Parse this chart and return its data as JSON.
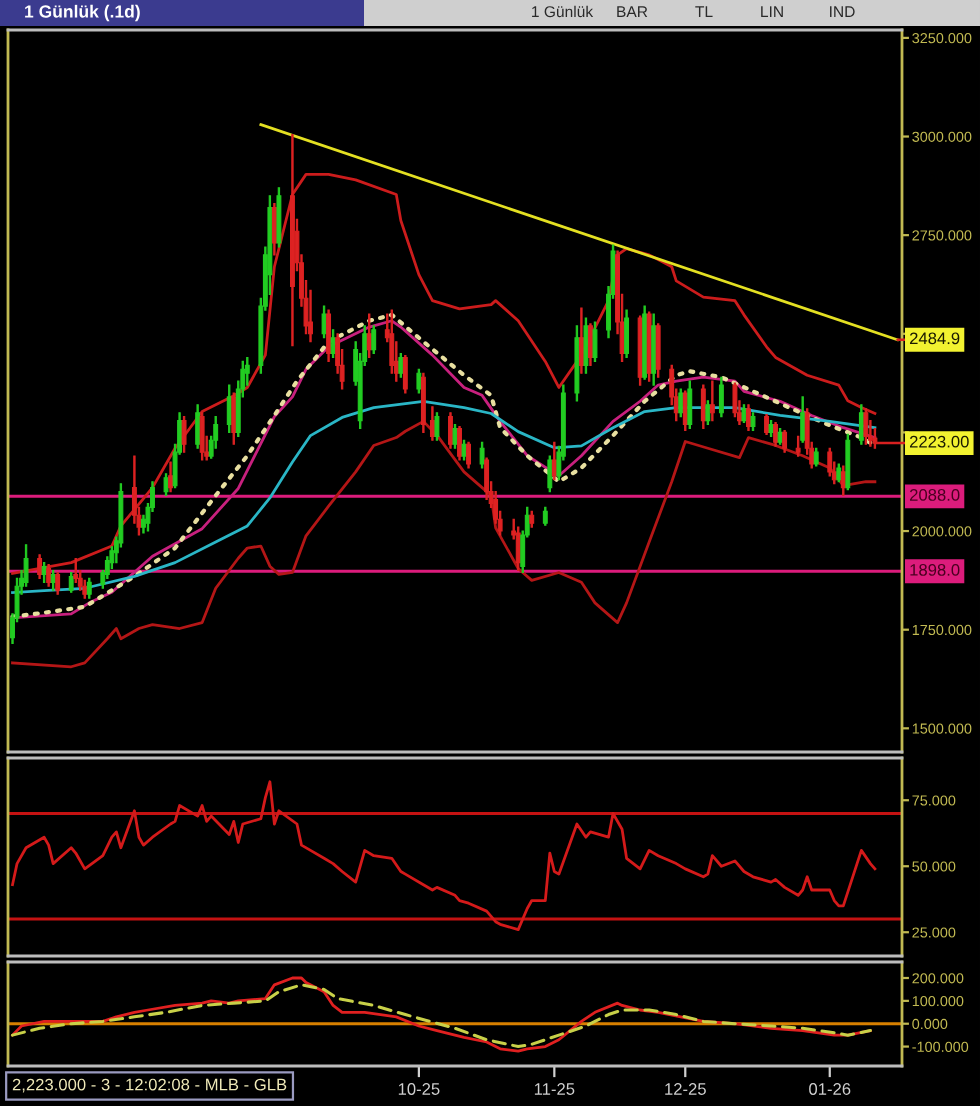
{
  "chart_data": [
    {
      "type": "candlestick",
      "title": "1 Günlük (.1d)",
      "annotations": [
        "1 Günlük",
        "BAR",
        "TL",
        "LIN",
        "IND",
        {
          "text": "2484.9",
          "x": "2026-02-10",
          "y": 2484.9
        },
        {
          "text": "2223.00",
          "x": "2026-02-05",
          "y": 2223
        }
      ],
      "x": [
        "2025-07-29",
        "2025-07-30",
        "2025-07-31",
        "2025-08-01",
        "2025-08-04",
        "2025-08-05",
        "2025-08-06",
        "2025-08-07",
        "2025-08-08",
        "2025-08-11",
        "2025-08-12",
        "2025-08-13",
        "2025-08-14",
        "2025-08-15",
        "2025-08-18",
        "2025-08-19",
        "2025-08-20",
        "2025-08-21",
        "2025-08-22",
        "2025-08-25",
        "2025-08-26",
        "2025-08-27",
        "2025-08-28",
        "2025-08-29",
        "2025-09-01",
        "2025-09-02",
        "2025-09-03",
        "2025-09-04",
        "2025-09-05",
        "2025-09-08",
        "2025-09-09",
        "2025-09-10",
        "2025-09-11",
        "2025-09-12",
        "2025-09-15",
        "2025-09-16",
        "2025-09-17",
        "2025-09-18",
        "2025-09-19",
        "2025-09-22",
        "2025-09-23",
        "2025-09-24",
        "2025-09-25",
        "2025-09-26",
        "2025-09-29",
        "2025-09-30",
        "2025-10-01",
        "2025-10-02",
        "2025-10-03",
        "2025-10-06",
        "2025-10-07",
        "2025-10-08",
        "2025-10-09",
        "2025-10-10",
        "2025-10-13",
        "2025-10-14",
        "2025-10-15",
        "2025-10-16",
        "2025-10-17",
        "2025-10-20",
        "2025-10-21",
        "2025-10-22",
        "2025-10-23",
        "2025-10-24",
        "2025-10-27",
        "2025-10-28",
        "2025-10-30",
        "2025-10-31",
        "2025-11-03",
        "2025-11-04",
        "2025-11-05",
        "2025-11-06",
        "2025-11-07",
        "2025-11-10",
        "2025-11-11",
        "2025-11-12",
        "2025-11-13",
        "2025-11-14",
        "2025-11-17",
        "2025-11-18",
        "2025-11-19",
        "2025-11-20",
        "2025-11-21",
        "2025-11-24",
        "2025-11-25",
        "2025-11-26",
        "2025-11-27",
        "2025-11-28",
        "2025-12-01",
        "2025-12-02",
        "2025-12-03",
        "2025-12-04",
        "2025-12-05",
        "2025-12-08",
        "2025-12-09",
        "2025-12-10",
        "2025-12-11",
        "2025-12-12",
        "2025-12-15",
        "2025-12-16",
        "2025-12-17",
        "2025-12-18",
        "2025-12-19",
        "2025-12-22",
        "2025-12-23",
        "2025-12-24",
        "2025-12-25",
        "2025-12-26",
        "2025-12-29",
        "2025-12-30",
        "2025-12-31",
        "2026-01-02",
        "2026-01-05",
        "2026-01-06",
        "2026-01-07",
        "2026-01-08",
        "2026-01-09",
        "2026-01-12",
        "2026-01-13",
        "2026-01-14",
        "2026-01-15",
        "2026-01-16",
        "2026-01-19",
        "2026-01-20",
        "2026-01-21",
        "2026-01-22",
        "2026-01-23",
        "2026-01-26",
        "2026-01-27",
        "2026-01-28",
        "2026-01-29",
        "2026-01-30",
        "2026-02-02",
        "2026-02-03",
        "2026-02-04",
        "2026-02-05"
      ],
      "ohlc": [
        [
          1730,
          1790,
          1715,
          1780
        ],
        [
          1780,
          1880,
          1770,
          1860
        ],
        [
          1860,
          1900,
          1840,
          1880
        ],
        [
          1870,
          1965,
          1860,
          1930
        ],
        [
          1930,
          1940,
          1880,
          1890
        ],
        [
          1890,
          1920,
          1870,
          1910
        ],
        [
          1905,
          1915,
          1860,
          1870
        ],
        [
          1870,
          1900,
          1850,
          1890
        ],
        [
          1890,
          1895,
          1840,
          1850
        ],
        [
          1850,
          1895,
          1845,
          1885
        ],
        [
          1890,
          1930,
          1870,
          1880
        ],
        [
          1880,
          1900,
          1850,
          1860
        ],
        [
          1860,
          1875,
          1830,
          1840
        ],
        [
          1840,
          1880,
          1830,
          1870
        ],
        [
          1865,
          1900,
          1855,
          1895
        ],
        [
          1890,
          1935,
          1880,
          1925
        ],
        [
          1920,
          1960,
          1905,
          1950
        ],
        [
          1945,
          1985,
          1920,
          1975
        ],
        [
          1970,
          2120,
          1960,
          2100
        ],
        [
          2110,
          2190,
          2020,
          2040
        ],
        [
          2040,
          2060,
          1990,
          2010
        ],
        [
          2010,
          2040,
          1995,
          2030
        ],
        [
          2020,
          2070,
          2000,
          2060
        ],
        [
          2060,
          2125,
          2050,
          2110
        ],
        [
          2100,
          2145,
          2090,
          2135
        ],
        [
          2140,
          2175,
          2100,
          2110
        ],
        [
          2115,
          2220,
          2110,
          2200
        ],
        [
          2200,
          2300,
          2195,
          2280
        ],
        [
          2280,
          2290,
          2200,
          2220
        ],
        [
          2220,
          2320,
          2210,
          2300
        ],
        [
          2290,
          2300,
          2180,
          2200
        ],
        [
          2200,
          2240,
          2180,
          2190
        ],
        [
          2190,
          2240,
          2185,
          2230
        ],
        [
          2230,
          2290,
          2210,
          2270
        ],
        [
          2270,
          2370,
          2250,
          2340
        ],
        [
          2340,
          2350,
          2220,
          2250
        ],
        [
          2250,
          2380,
          2240,
          2360
        ],
        [
          2360,
          2430,
          2340,
          2410
        ],
        [
          2400,
          2440,
          2370,
          2420
        ],
        [
          2420,
          2590,
          2400,
          2570
        ],
        [
          2570,
          2720,
          2560,
          2700
        ],
        [
          2650,
          2850,
          2600,
          2820
        ],
        [
          2820,
          2830,
          2700,
          2730
        ],
        [
          2730,
          2870,
          2720,
          2850
        ],
        [
          2850,
          3005,
          2470,
          2620
        ],
        [
          2760,
          2790,
          2660,
          2680
        ],
        [
          2680,
          2700,
          2570,
          2590
        ],
        [
          2590,
          2635,
          2500,
          2520
        ],
        [
          2530,
          2610,
          2480,
          2500
        ],
        [
          2500,
          2570,
          2490,
          2550
        ],
        [
          2550,
          2560,
          2430,
          2450
        ],
        [
          2450,
          2510,
          2440,
          2490
        ],
        [
          2490,
          2500,
          2400,
          2420
        ],
        [
          2420,
          2460,
          2360,
          2380
        ],
        [
          2380,
          2480,
          2370,
          2460
        ],
        [
          2280,
          2450,
          2260,
          2430
        ],
        [
          2430,
          2520,
          2420,
          2500
        ],
        [
          2500,
          2550,
          2440,
          2460
        ],
        [
          2460,
          2520,
          2450,
          2510
        ],
        [
          2510,
          2550,
          2480,
          2490
        ],
        [
          2500,
          2560,
          2400,
          2420
        ],
        [
          2430,
          2480,
          2380,
          2400
        ],
        [
          2400,
          2450,
          2390,
          2440
        ],
        [
          2440,
          2445,
          2350,
          2360
        ],
        [
          2360,
          2410,
          2350,
          2400
        ],
        [
          2390,
          2400,
          2250,
          2270
        ],
        [
          2280,
          2315,
          2230,
          2240
        ],
        [
          2240,
          2300,
          2230,
          2290
        ],
        [
          2290,
          2300,
          2210,
          2220
        ],
        [
          2220,
          2270,
          2210,
          2260
        ],
        [
          2260,
          2265,
          2180,
          2190
        ],
        [
          2190,
          2230,
          2180,
          2220
        ],
        [
          2220,
          2225,
          2160,
          2170
        ],
        [
          2170,
          2225,
          2160,
          2210
        ],
        [
          2180,
          2185,
          2080,
          2100
        ],
        [
          2100,
          2125,
          2060,
          2070
        ],
        [
          2080,
          2100,
          2020,
          2030
        ],
        [
          2030,
          2050,
          1990,
          2000
        ],
        [
          2000,
          2030,
          1980,
          1990
        ],
        [
          1995,
          2010,
          1900,
          1920
        ],
        [
          1910,
          2000,
          1895,
          1990
        ],
        [
          1990,
          2060,
          1985,
          2040
        ],
        [
          2040,
          2050,
          2010,
          2020
        ],
        [
          2020,
          2060,
          2015,
          2050
        ],
        [
          2110,
          2190,
          2100,
          2180
        ],
        [
          2180,
          2225,
          2130,
          2140
        ],
        [
          2140,
          2215,
          2130,
          2200
        ],
        [
          2190,
          2370,
          2180,
          2350
        ],
        [
          2350,
          2520,
          2330,
          2490
        ],
        [
          2490,
          2565,
          2400,
          2420
        ],
        [
          2420,
          2540,
          2400,
          2520
        ],
        [
          2520,
          2525,
          2420,
          2440
        ],
        [
          2440,
          2530,
          2430,
          2510
        ],
        [
          2510,
          2620,
          2490,
          2600
        ],
        [
          2600,
          2725,
          2590,
          2710
        ],
        [
          2700,
          2710,
          2500,
          2530
        ],
        [
          2530,
          2600,
          2430,
          2450
        ],
        [
          2450,
          2560,
          2440,
          2540
        ],
        [
          2540,
          2545,
          2370,
          2390
        ],
        [
          2390,
          2570,
          2385,
          2550
        ],
        [
          2550,
          2555,
          2380,
          2400
        ],
        [
          2400,
          2550,
          2370,
          2520
        ],
        [
          2520,
          2525,
          2390,
          2410
        ],
        [
          2410,
          2420,
          2320,
          2340
        ],
        [
          2340,
          2360,
          2280,
          2300
        ],
        [
          2300,
          2360,
          2290,
          2350
        ],
        [
          2350,
          2355,
          2255,
          2270
        ],
        [
          2270,
          2380,
          2260,
          2360
        ],
        [
          2360,
          2370,
          2260,
          2280
        ],
        [
          2280,
          2330,
          2270,
          2320
        ],
        [
          2320,
          2380,
          2280,
          2300
        ],
        [
          2300,
          2390,
          2290,
          2370
        ],
        [
          2370,
          2375,
          2290,
          2300
        ],
        [
          2300,
          2330,
          2270,
          2280
        ],
        [
          2280,
          2320,
          2275,
          2310
        ],
        [
          2310,
          2320,
          2255,
          2265
        ],
        [
          2265,
          2300,
          2255,
          2290
        ],
        [
          2290,
          2295,
          2245,
          2250
        ],
        [
          2250,
          2280,
          2240,
          2270
        ],
        [
          2270,
          2275,
          2215,
          2225
        ],
        [
          2225,
          2260,
          2220,
          2250
        ],
        [
          2250,
          2255,
          2200,
          2210
        ],
        [
          2210,
          2240,
          2190,
          2200
        ],
        [
          2230,
          2340,
          2225,
          2300
        ],
        [
          2300,
          2310,
          2195,
          2210
        ],
        [
          2210,
          2225,
          2160,
          2170
        ],
        [
          2170,
          2210,
          2165,
          2200
        ],
        [
          2200,
          2210,
          2140,
          2150
        ],
        [
          2150,
          2175,
          2120,
          2130
        ],
        [
          2130,
          2170,
          2125,
          2160
        ],
        [
          2150,
          2165,
          2090,
          2110
        ],
        [
          2110,
          2245,
          2105,
          2230
        ],
        [
          2230,
          2320,
          2220,
          2300
        ],
        [
          2300,
          2310,
          2220,
          2240
        ],
        [
          2240,
          2280,
          2215,
          2230
        ],
        [
          2235,
          2260,
          2210,
          2223
        ]
      ],
      "colors": [
        "#22cc22",
        "#22cc22",
        "#22cc22",
        "#22cc22",
        "#dd2222",
        "#22cc22",
        "#dd2222",
        "#22cc22",
        "#dd2222",
        "#22cc22",
        "#dd2222",
        "#dd2222",
        "#dd2222",
        "#22cc22",
        "#22cc22",
        "#22cc22",
        "#22cc22",
        "#22cc22",
        "#22cc22",
        "#dd2222",
        "#dd2222",
        "#22cc22",
        "#22cc22",
        "#22cc22",
        "#22cc22",
        "#dd2222",
        "#22cc22",
        "#22cc22",
        "#dd2222",
        "#22cc22",
        "#dd2222",
        "#dd2222",
        "#22cc22",
        "#22cc22",
        "#22cc22",
        "#dd2222",
        "#22cc22",
        "#22cc22",
        "#22cc22",
        "#22cc22",
        "#22cc22",
        "#22cc22",
        "#dd2222",
        "#22cc22",
        "#dd2222",
        "#dd2222",
        "#dd2222",
        "#dd2222",
        "#dd2222",
        "#22cc22",
        "#dd2222",
        "#22cc22",
        "#dd2222",
        "#dd2222",
        "#22cc22",
        "#22cc22",
        "#22cc22",
        "#dd2222",
        "#22cc22",
        "#dd2222",
        "#dd2222",
        "#dd2222",
        "#22cc22",
        "#dd2222",
        "#22cc22",
        "#dd2222",
        "#dd2222",
        "#22cc22",
        "#dd2222",
        "#22cc22",
        "#dd2222",
        "#22cc22",
        "#dd2222",
        "#22cc22",
        "#dd2222",
        "#dd2222",
        "#dd2222",
        "#dd2222",
        "#dd2222",
        "#dd2222",
        "#22cc22",
        "#22cc22",
        "#dd2222",
        "#22cc22",
        "#22cc22",
        "#dd2222",
        "#22cc22",
        "#22cc22",
        "#22cc22",
        "#dd2222",
        "#22cc22",
        "#dd2222",
        "#22cc22",
        "#22cc22",
        "#22cc22",
        "#dd2222",
        "#dd2222",
        "#22cc22",
        "#dd2222",
        "#22cc22",
        "#dd2222",
        "#22cc22",
        "#dd2222",
        "#dd2222",
        "#dd2222",
        "#22cc22",
        "#dd2222",
        "#22cc22",
        "#dd2222",
        "#22cc22",
        "#dd2222",
        "#22cc22",
        "#dd2222",
        "#dd2222",
        "#22cc22",
        "#dd2222",
        "#22cc22",
        "#dd2222",
        "#22cc22",
        "#dd2222",
        "#22cc22",
        "#dd2222",
        "#dd2222",
        "#22cc22",
        "#dd2222",
        "#dd2222",
        "#22cc22",
        "#dd2222",
        "#dd2222",
        "#22cc22",
        "#dd2222",
        "#22cc22",
        "#22cc22",
        "#dd2222",
        "#dd2222",
        "#dd2222"
      ],
      "series": [
        {
          "type": "line",
          "color": "#cc1c1c",
          "x": [
            "2025-07-29",
            "2025-08-11",
            "2025-08-20",
            "2025-08-22",
            "2025-08-29",
            "2025-09-03",
            "2025-09-09",
            "2025-09-16",
            "2025-09-19",
            "2025-09-23",
            "2025-09-25",
            "2025-09-29",
            "2025-10-02",
            "2025-10-07",
            "2025-10-13",
            "2025-10-22",
            "2025-10-23",
            "2025-10-27",
            "2025-10-30",
            "2025-11-05",
            "2025-11-12",
            "2025-11-13",
            "2025-11-18",
            "2025-11-24",
            "2025-11-27",
            "2025-12-02",
            "2025-12-08",
            "2025-12-10",
            "2025-12-12",
            "2025-12-17",
            "2025-12-22",
            "2025-12-23",
            "2025-12-29",
            "2026-01-05",
            "2026-01-07",
            "2026-01-12",
            "2026-01-14",
            "2026-01-21",
            "2026-01-28",
            "2026-01-30",
            "2026-02-02",
            "2026-02-05"
          ],
          "values": [
            1893,
            1920,
            1962,
            2013,
            2110,
            2210,
            2303,
            2343,
            2364,
            2446,
            2670,
            2853,
            2904,
            2904,
            2890,
            2853,
            2787,
            2650,
            2584,
            2563,
            2574,
            2584,
            2533,
            2430,
            2364,
            2446,
            2584,
            2700,
            2716,
            2700,
            2670,
            2634,
            2593,
            2584,
            2548,
            2467,
            2440,
            2395,
            2370,
            2330,
            2313,
            2298
          ]
        },
        {
          "type": "line",
          "color": "#b41616",
          "x": [
            "2025-07-29",
            "2025-08-11",
            "2025-08-14",
            "2025-08-19",
            "2025-08-21",
            "2025-08-22",
            "2025-08-26",
            "2025-08-29",
            "2025-09-04",
            "2025-09-09",
            "2025-09-12",
            "2025-09-17",
            "2025-09-19",
            "2025-09-22",
            "2025-09-24",
            "2025-09-26",
            "2025-09-29",
            "2025-10-02",
            "2025-10-07",
            "2025-10-13",
            "2025-10-17",
            "2025-10-22",
            "2025-10-24",
            "2025-10-28",
            "2025-10-31",
            "2025-11-06",
            "2025-11-10",
            "2025-11-12",
            "2025-11-13",
            "2025-11-18",
            "2025-11-21",
            "2025-11-27",
            "2025-12-02",
            "2025-12-05",
            "2025-12-10",
            "2025-12-12",
            "2025-12-17",
            "2025-12-22",
            "2025-12-25",
            "2025-12-30",
            "2026-01-06",
            "2026-01-08",
            "2026-01-14",
            "2026-01-20",
            "2026-01-26",
            "2026-01-29",
            "2026-02-03",
            "2026-02-05"
          ],
          "values": [
            1666,
            1656,
            1666,
            1727,
            1753,
            1727,
            1753,
            1763,
            1753,
            1768,
            1855,
            1931,
            1957,
            1962,
            1911,
            1890,
            1895,
            1988,
            2063,
            2150,
            2217,
            2237,
            2253,
            2278,
            2243,
            2150,
            2110,
            2090,
            2008,
            1905,
            1875,
            1895,
            1870,
            1818,
            1768,
            1818,
            1972,
            2125,
            2227,
            2210,
            2186,
            2237,
            2217,
            2191,
            2160,
            2115,
            2125,
            2125
          ]
        },
        {
          "type": "line",
          "color": "#c8207e",
          "x": [
            "2025-07-29",
            "2025-08-11",
            "2025-08-15",
            "2025-08-20",
            "2025-08-29",
            "2025-09-09",
            "2025-09-17",
            "2025-09-25",
            "2025-09-29",
            "2025-10-02",
            "2025-10-07",
            "2025-10-16",
            "2025-10-21",
            "2025-10-23",
            "2025-10-30",
            "2025-11-06",
            "2025-11-10",
            "2025-11-14",
            "2025-11-20",
            "2025-11-27",
            "2025-12-02",
            "2025-12-09",
            "2025-12-15",
            "2025-12-19",
            "2025-12-23",
            "2025-12-29",
            "2026-01-05",
            "2026-01-07",
            "2026-01-15",
            "2026-01-22",
            "2026-01-29",
            "2026-02-05"
          ],
          "values": [
            1780,
            1790,
            1818,
            1845,
            1936,
            2006,
            2108,
            2290,
            2340,
            2410,
            2467,
            2517,
            2533,
            2517,
            2446,
            2364,
            2344,
            2278,
            2191,
            2140,
            2191,
            2278,
            2329,
            2370,
            2380,
            2390,
            2380,
            2354,
            2329,
            2293,
            2262,
            2237
          ]
        },
        {
          "type": "line",
          "color": "#e8dfa0",
          "line_style": "dotted",
          "x": [
            "2025-07-29",
            "2025-08-05",
            "2025-08-14",
            "2025-08-25",
            "2025-09-03",
            "2025-09-12",
            "2025-09-19",
            "2025-09-25",
            "2025-09-30",
            "2025-10-07",
            "2025-10-16",
            "2025-10-21",
            "2025-10-28",
            "2025-11-06",
            "2025-11-12",
            "2025-11-14",
            "2025-11-20",
            "2025-11-26",
            "2025-11-27",
            "2025-12-02",
            "2025-12-09",
            "2025-12-16",
            "2025-12-23",
            "2025-12-26",
            "2026-01-02",
            "2026-01-12",
            "2026-01-19",
            "2026-01-26",
            "2026-02-02",
            "2026-02-05"
          ],
          "values": [
            1783,
            1793,
            1808,
            1885,
            1957,
            2090,
            2191,
            2293,
            2380,
            2480,
            2533,
            2548,
            2480,
            2395,
            2344,
            2262,
            2191,
            2135,
            2125,
            2160,
            2242,
            2329,
            2395,
            2405,
            2390,
            2339,
            2303,
            2268,
            2237,
            2217
          ]
        },
        {
          "type": "line",
          "color": "#2ab6c6",
          "x": [
            "2025-07-29",
            "2025-08-05",
            "2025-08-14",
            "2025-08-25",
            "2025-09-03",
            "2025-09-12",
            "2025-09-19",
            "2025-09-24",
            "2025-09-29",
            "2025-10-03",
            "2025-10-10",
            "2025-10-17",
            "2025-10-28",
            "2025-11-06",
            "2025-11-12",
            "2025-11-18",
            "2025-11-26",
            "2025-12-02",
            "2025-12-09",
            "2025-12-16",
            "2025-12-23",
            "2026-01-05",
            "2026-01-15",
            "2026-01-26",
            "2026-02-05"
          ],
          "values": [
            1844,
            1849,
            1855,
            1885,
            1920,
            1972,
            2013,
            2084,
            2175,
            2242,
            2288,
            2313,
            2329,
            2313,
            2298,
            2252,
            2211,
            2216,
            2262,
            2303,
            2313,
            2313,
            2293,
            2278,
            2262
          ]
        },
        {
          "type": "line",
          "color": "#e4e022",
          "x": [
            "2025-09-22",
            "2026-02-10"
          ],
          "values": [
            3030,
            2484.9
          ]
        }
      ],
      "ref_lines": [
        {
          "axis": "y",
          "value": 2088.0,
          "label": "2088.0",
          "color": "#dc1c7c"
        },
        {
          "axis": "y",
          "value": 1898.0,
          "label": "1898.0",
          "color": "#dc1c7c"
        }
      ],
      "xlim": [
        "2025-07-28",
        "2026-02-11"
      ],
      "ylim": [
        1440,
        3270
      ],
      "yticks": [
        {
          "value": 3250,
          "label": "3250.000"
        },
        {
          "value": 3000,
          "label": "3000.000"
        },
        {
          "value": 2750,
          "label": "2750.000"
        },
        {
          "value": 2500,
          "label": null
        },
        {
          "value": 2250,
          "label": null
        },
        {
          "value": 2000,
          "label": "2000.000"
        },
        {
          "value": 1750,
          "label": "1750.000"
        },
        {
          "value": 1500,
          "label": "1500.000"
        }
      ],
      "tick_labels": "y"
    },
    {
      "type": "line",
      "series": [
        {
          "color": "#d41a1a",
          "x": [
            "2025-07-29",
            "2025-07-30",
            "2025-08-01",
            "2025-08-05",
            "2025-08-06",
            "2025-08-07",
            "2025-08-11",
            "2025-08-12",
            "2025-08-14",
            "2025-08-18",
            "2025-08-20",
            "2025-08-21",
            "2025-08-22",
            "2025-08-25",
            "2025-08-26",
            "2025-08-27",
            "2025-08-29",
            "2025-09-02",
            "2025-09-03",
            "2025-09-04",
            "2025-09-08",
            "2025-09-09",
            "2025-09-10",
            "2025-09-11",
            "2025-09-15",
            "2025-09-16",
            "2025-09-17",
            "2025-09-18",
            "2025-09-22",
            "2025-09-23",
            "2025-09-24",
            "2025-09-25",
            "2025-09-26",
            "2025-09-30",
            "2025-10-01",
            "2025-10-03",
            "2025-10-06",
            "2025-10-08",
            "2025-10-10",
            "2025-10-13",
            "2025-10-15",
            "2025-10-17",
            "2025-10-21",
            "2025-10-23",
            "2025-10-24",
            "2025-10-28",
            "2025-10-30",
            "2025-10-31",
            "2025-11-04",
            "2025-11-05",
            "2025-11-07",
            "2025-11-11",
            "2025-11-13",
            "2025-11-14",
            "2025-11-18",
            "2025-11-20",
            "2025-11-21",
            "2025-11-24",
            "2025-11-25",
            "2025-11-26",
            "2025-11-27",
            "2025-12-01",
            "2025-12-03",
            "2025-12-04",
            "2025-12-08",
            "2025-12-09",
            "2025-12-11",
            "2025-12-12",
            "2025-12-15",
            "2025-12-17",
            "2025-12-19",
            "2025-12-23",
            "2025-12-25",
            "2025-12-29",
            "2025-12-30",
            "2025-12-31",
            "2026-01-02",
            "2026-01-05",
            "2026-01-07",
            "2026-01-09",
            "2026-01-13",
            "2026-01-14",
            "2026-01-16",
            "2026-01-19",
            "2026-01-20",
            "2026-01-21",
            "2026-01-22",
            "2026-01-26",
            "2026-01-27",
            "2026-01-28",
            "2026-01-29",
            "2026-02-02",
            "2026-02-04",
            "2026-02-05"
          ],
          "values": [
            43,
            51,
            57,
            61,
            58,
            51,
            57,
            55,
            49,
            54,
            61,
            63,
            57,
            71,
            61,
            58,
            61,
            66,
            67,
            73,
            69,
            73,
            67,
            69,
            62,
            67,
            59,
            66,
            68,
            76,
            82,
            66,
            71,
            66,
            58,
            56,
            53,
            51,
            48,
            44,
            56,
            54,
            53,
            48,
            47,
            43,
            41,
            42,
            39,
            37,
            36,
            33,
            29,
            28,
            26,
            34,
            37,
            37,
            55,
            48,
            47,
            66,
            61,
            63,
            61,
            70,
            64,
            53,
            49,
            56,
            54,
            51,
            49,
            46,
            47,
            54,
            50,
            52,
            48,
            46,
            44,
            45,
            42,
            39,
            41,
            46,
            41,
            41,
            37,
            35,
            35,
            56,
            51,
            49
          ]
        }
      ],
      "ref_lines": [
        {
          "axis": "y",
          "value": 70,
          "color": "#c41212"
        },
        {
          "axis": "y",
          "value": 30,
          "color": "#c41212"
        }
      ],
      "xlim": [
        "2025-07-28",
        "2026-02-11"
      ],
      "ylim": [
        16,
        91
      ],
      "yticks": [
        {
          "value": 75,
          "label": "75.000"
        },
        {
          "value": 50,
          "label": "50.000"
        },
        {
          "value": 25,
          "label": "25.000"
        }
      ],
      "tick_labels": "y"
    },
    {
      "type": "line",
      "series": [
        {
          "color": "#e02020",
          "x": [
            "2025-07-29",
            "2025-07-31",
            "2025-08-05",
            "2025-08-11",
            "2025-08-18",
            "2025-08-21",
            "2025-08-25",
            "2025-08-28",
            "2025-09-03",
            "2025-09-09",
            "2025-09-11",
            "2025-09-15",
            "2025-09-17",
            "2025-09-23",
            "2025-09-25",
            "2025-09-29",
            "2025-10-01",
            "2025-10-02",
            "2025-10-06",
            "2025-10-08",
            "2025-10-10",
            "2025-10-15",
            "2025-10-22",
            "2025-10-27",
            "2025-10-31",
            "2025-11-06",
            "2025-11-11",
            "2025-11-14",
            "2025-11-18",
            "2025-11-20",
            "2025-11-24",
            "2025-11-27",
            "2025-12-02",
            "2025-12-05",
            "2025-12-10",
            "2025-12-11",
            "2025-12-15",
            "2025-12-19",
            "2025-12-24",
            "2025-12-29",
            "2026-01-05",
            "2026-01-13",
            "2026-01-20",
            "2026-01-27",
            "2026-01-30",
            "2026-02-04"
          ],
          "values": [
            -50,
            -10,
            10,
            10,
            10,
            30,
            50,
            60,
            80,
            90,
            100,
            90,
            100,
            110,
            170,
            200,
            200,
            180,
            140,
            80,
            50,
            50,
            30,
            -10,
            -30,
            -60,
            -80,
            -110,
            -120,
            -110,
            -100,
            -70,
            10,
            50,
            90,
            80,
            60,
            50,
            30,
            10,
            0,
            -20,
            -30,
            -50,
            -50,
            -30
          ]
        },
        {
          "color": "#c8d048",
          "line_style": "dashed",
          "x": [
            "2025-07-29",
            "2025-08-04",
            "2025-08-11",
            "2025-08-18",
            "2025-08-25",
            "2025-09-01",
            "2025-09-09",
            "2025-09-16",
            "2025-09-23",
            "2025-09-26",
            "2025-10-01",
            "2025-10-06",
            "2025-10-09",
            "2025-10-17",
            "2025-10-24",
            "2025-11-04",
            "2025-11-11",
            "2025-11-18",
            "2025-11-21",
            "2025-11-27",
            "2025-12-03",
            "2025-12-08",
            "2025-12-11",
            "2025-12-17",
            "2025-12-23",
            "2025-12-29",
            "2026-01-05",
            "2026-01-13",
            "2026-01-20",
            "2026-01-27",
            "2026-01-30",
            "2026-02-04"
          ],
          "values": [
            -50,
            -20,
            0,
            10,
            30,
            50,
            80,
            90,
            100,
            140,
            170,
            150,
            110,
            80,
            40,
            -20,
            -70,
            -100,
            -90,
            -50,
            -10,
            40,
            60,
            60,
            40,
            10,
            0,
            -10,
            -20,
            -40,
            -50,
            -30
          ]
        }
      ],
      "ref_lines": [
        {
          "axis": "y",
          "value": 0,
          "color": "#d88000"
        }
      ],
      "annotations": [
        "2,223.000 - 3 - 12:02:08 - MLB - GLB"
      ],
      "xlim": [
        "2025-07-28",
        "2026-02-11"
      ],
      "ylim": [
        -185,
        270
      ],
      "yticks": [
        {
          "value": 200,
          "label": "200.000"
        },
        {
          "value": 100,
          "label": "100.000"
        },
        {
          "value": 0,
          "label": "0.000"
        },
        {
          "value": -100,
          "label": "-100.000"
        }
      ],
      "xticks": [
        {
          "value": "2025-10-27",
          "label": "10-25"
        },
        {
          "value": "2025-11-26",
          "label": "11-25"
        },
        {
          "value": "2025-12-25",
          "label": "12-25"
        },
        {
          "value": "2026-01-26",
          "label": "01-26"
        }
      ]
    }
  ]
}
